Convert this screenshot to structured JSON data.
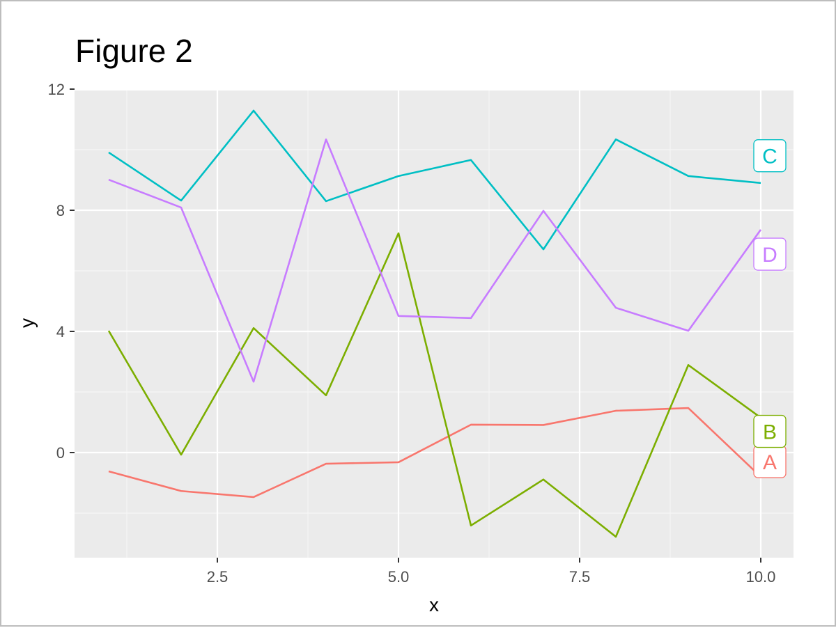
{
  "chart_data": {
    "type": "line",
    "title": "Figure 2",
    "xlabel": "x",
    "ylabel": "y",
    "xlim": [
      0.5,
      10.5
    ],
    "ylim": [
      -3.5,
      12
    ],
    "x_ticks": [
      2.5,
      5.0,
      7.5,
      10.0
    ],
    "x_tick_labels": [
      "2.5",
      "5.0",
      "7.5",
      "10.0"
    ],
    "y_ticks": [
      0,
      4,
      8,
      12
    ],
    "y_tick_labels": [
      "0",
      "4",
      "8",
      "12"
    ],
    "grid": true,
    "legend": "direct labels at line ends (boxed)",
    "x": [
      1,
      2,
      3,
      4,
      5,
      6,
      7,
      8,
      9,
      10
    ],
    "series": [
      {
        "name": "A",
        "color": "#F8766D",
        "values": [
          -0.62,
          -1.27,
          -1.47,
          -0.37,
          -0.32,
          0.92,
          0.91,
          1.38,
          1.47,
          -0.8
        ],
        "label_y": -0.3
      },
      {
        "name": "B",
        "color": "#7CAE00",
        "values": [
          4.02,
          -0.07,
          4.11,
          1.89,
          7.24,
          -2.41,
          -0.89,
          -2.78,
          2.89,
          1.15
        ],
        "label_y": 0.7
      },
      {
        "name": "C",
        "color": "#00BFC4",
        "values": [
          9.91,
          8.32,
          11.29,
          8.3,
          9.13,
          9.66,
          6.71,
          10.34,
          9.13,
          8.9
        ],
        "label_y": 9.8
      },
      {
        "name": "D",
        "color": "#C77CFF",
        "values": [
          9.01,
          8.09,
          2.34,
          10.34,
          4.51,
          4.44,
          7.98,
          4.78,
          4.02,
          7.36
        ],
        "label_y": 6.55
      }
    ]
  },
  "style": {
    "panel_bg": "#EBEBEB",
    "grid_major": "#FFFFFF",
    "grid_minor": "#F5F5F5",
    "tick_color": "#333333"
  }
}
